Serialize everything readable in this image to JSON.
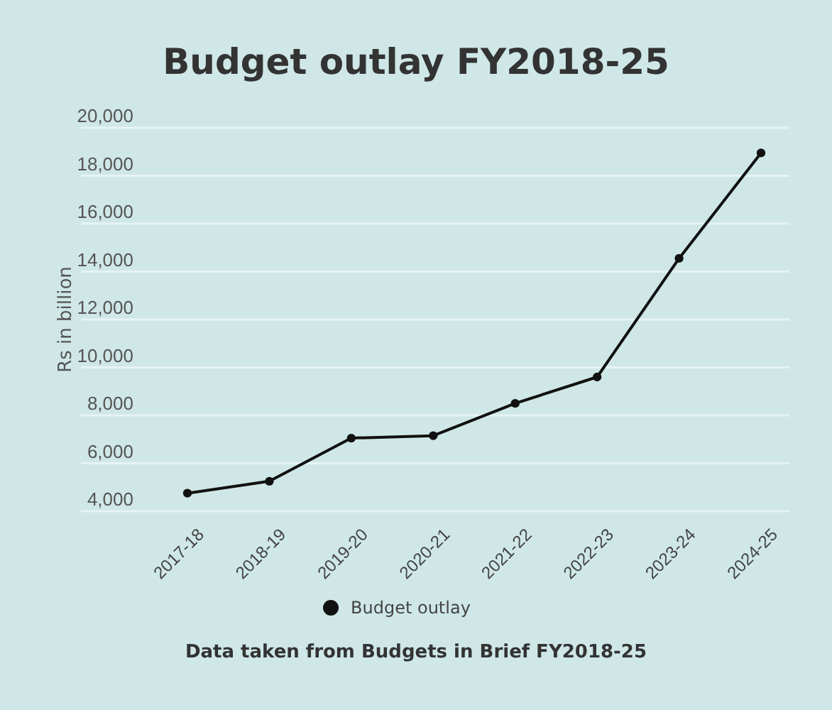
{
  "chart_data": {
    "type": "line",
    "title": "Budget outlay FY2018-25",
    "ylabel": "Rs in billion",
    "categories": [
      "2017-18",
      "2018-19",
      "2019-20",
      "2020-21",
      "2021-22",
      "2022-23",
      "2023-24",
      "2024-25"
    ],
    "series": [
      {
        "name": "Budget outlay",
        "color": "#111111",
        "values": [
          4750,
          5250,
          7050,
          7150,
          8500,
          9600,
          14550,
          18950
        ]
      }
    ],
    "ylim": [
      4000,
      20000
    ],
    "yticks": [
      {
        "value": 4000,
        "label": "4,000"
      },
      {
        "value": 6000,
        "label": "6,000"
      },
      {
        "value": 8000,
        "label": "8,000"
      },
      {
        "value": 10000,
        "label": "10,000"
      },
      {
        "value": 12000,
        "label": "12,000"
      },
      {
        "value": 14000,
        "label": "14,000"
      },
      {
        "value": 16000,
        "label": "16,000"
      },
      {
        "value": 18000,
        "label": "18,000"
      },
      {
        "value": 20000,
        "label": "20,000"
      }
    ],
    "grid": "y",
    "legend": "bottom",
    "marker": "circle",
    "line_style": "solid",
    "annotations": [
      "Data taken from Budgets in Brief FY2018-25"
    ]
  }
}
